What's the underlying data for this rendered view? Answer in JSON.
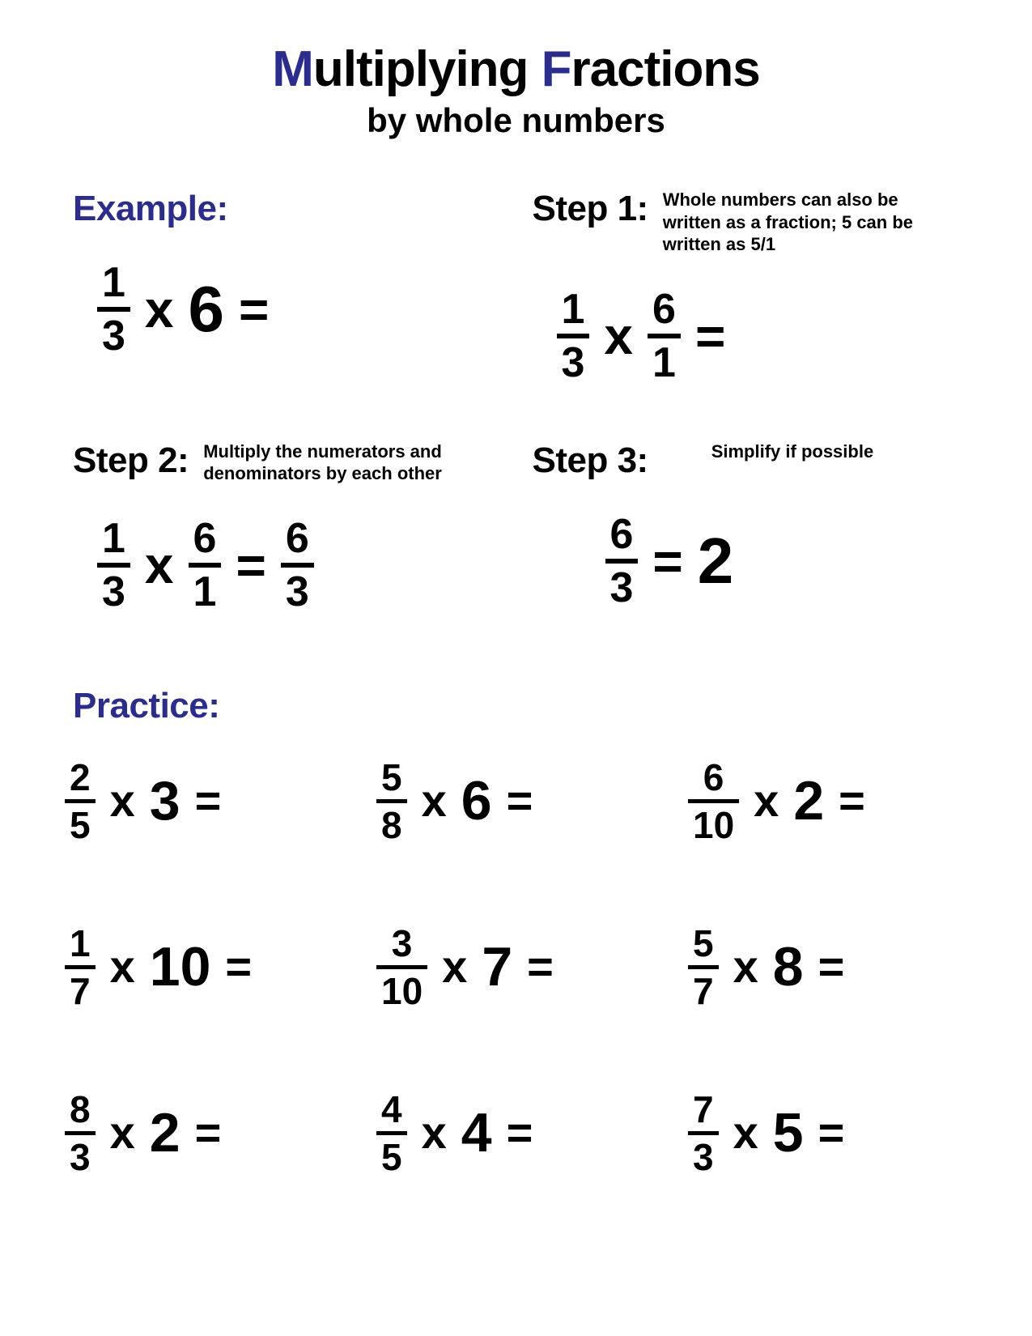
{
  "colors": {
    "accent": "#2a2d8f",
    "text": "#000000",
    "bg": "#ffffff"
  },
  "typography": {
    "title_fontsize": 62,
    "subtitle_fontsize": 42,
    "label_fontsize": 44,
    "desc_fontsize": 22
  },
  "title": {
    "word1": "Multiplying",
    "word2": "Fractions"
  },
  "subtitle": "by whole numbers",
  "labels": {
    "example": "Example:",
    "step1": "Step 1:",
    "step2": "Step 2:",
    "step3": "Step 3:",
    "practice": "Practice:"
  },
  "descriptions": {
    "step1": "Whole numbers can also be written as a fraction; 5 can be written as 5/1",
    "step2": "Multiply the numerators and denominators by each other",
    "step3": "Simplify if possible"
  },
  "symbols": {
    "times": "x",
    "equals": "="
  },
  "example": {
    "initial": {
      "frac": {
        "num": "1",
        "den": "3"
      },
      "whole": "6"
    },
    "step1": {
      "a": {
        "num": "1",
        "den": "3"
      },
      "b": {
        "num": "6",
        "den": "1"
      }
    },
    "step2": {
      "a": {
        "num": "1",
        "den": "3"
      },
      "b": {
        "num": "6",
        "den": "1"
      },
      "result": {
        "num": "6",
        "den": "3"
      }
    },
    "step3": {
      "frac": {
        "num": "6",
        "den": "3"
      },
      "whole": "2"
    }
  },
  "practice": [
    {
      "num": "2",
      "den": "5",
      "whole": "3"
    },
    {
      "num": "5",
      "den": "8",
      "whole": "6"
    },
    {
      "num": "6",
      "den": "10",
      "whole": "2"
    },
    {
      "num": "1",
      "den": "7",
      "whole": "10"
    },
    {
      "num": "3",
      "den": "10",
      "whole": "7"
    },
    {
      "num": "5",
      "den": "7",
      "whole": "8"
    },
    {
      "num": "8",
      "den": "3",
      "whole": "2"
    },
    {
      "num": "4",
      "den": "5",
      "whole": "4"
    },
    {
      "num": "7",
      "den": "3",
      "whole": "5"
    }
  ]
}
